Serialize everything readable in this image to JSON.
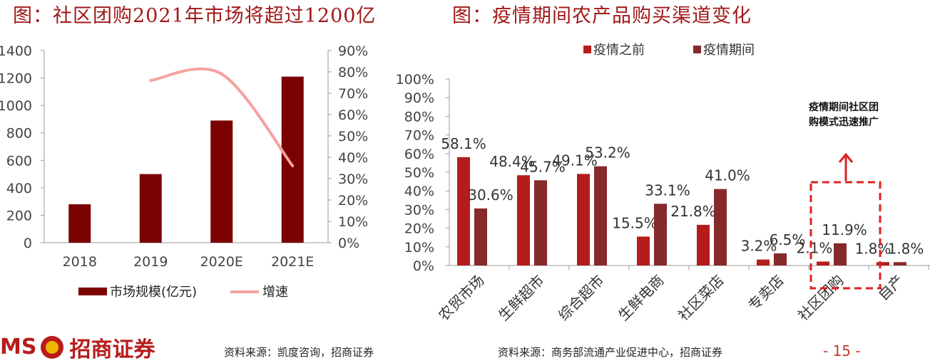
{
  "titles": {
    "left": "图：社区团购2021年市场将超过1200亿",
    "right": "图：疫情期间农产品购买渠道变化"
  },
  "sources": {
    "left": "资料来源：凯度咨询，招商证券",
    "right": "资料来源：商务部流通产业促进中心，招商证券"
  },
  "page_number": "- 15 -",
  "logo": {
    "left_text": "MS",
    "right_text": "招商证券"
  },
  "colors": {
    "bar_dark": "#7b0000",
    "growth_line": "#f4a3a0",
    "before": "#b51c1c",
    "during": "#86292b",
    "title": "#a01717",
    "callout": "#e02020"
  },
  "chart_data": [
    {
      "type": "bar",
      "categories": [
        "2018",
        "2019",
        "2020E",
        "2021E"
      ],
      "series": [
        {
          "name": "市场规模(亿元)",
          "values": [
            280,
            500,
            890,
            1210
          ],
          "axis": "left"
        },
        {
          "name": "增速",
          "type": "line",
          "values": [
            null,
            76,
            79,
            36
          ],
          "axis": "right"
        }
      ],
      "ylim": [
        0,
        1400
      ],
      "yticks": [
        "0",
        "200",
        "400",
        "600",
        "800",
        "1000",
        "1200",
        "1400"
      ],
      "y2lim": [
        0,
        90
      ],
      "y2ticks": [
        "0%",
        "10%",
        "20%",
        "30%",
        "40%",
        "50%",
        "60%",
        "70%",
        "80%",
        "90%"
      ],
      "legend": "bottom"
    },
    {
      "type": "bar",
      "categories": [
        "农贸市场",
        "生鲜超市",
        "综合超市",
        "生鲜电商",
        "社区菜店",
        "专卖店",
        "社区团购",
        "自产"
      ],
      "series": [
        {
          "name": "疫情之前",
          "values": [
            58.1,
            48.4,
            49.1,
            15.5,
            21.8,
            3.2,
            2.1,
            1.8
          ],
          "labels": [
            "58.1%",
            "48.4%",
            "49.1%",
            "15.5%",
            "21.8%",
            "3.2%",
            "2.1%",
            "1.8%"
          ]
        },
        {
          "name": "疫情期间",
          "values": [
            30.6,
            45.7,
            53.2,
            33.1,
            41.0,
            6.5,
            11.9,
            1.8
          ],
          "labels": [
            "30.6%",
            "45.7%",
            "53.2%",
            "33.1%",
            "41.0%",
            "6.5%",
            "11.9%",
            "1.8%"
          ]
        }
      ],
      "ylim": [
        0,
        100
      ],
      "yticks": [
        "0%",
        "10%",
        "20%",
        "30%",
        "40%",
        "50%",
        "60%",
        "70%",
        "80%",
        "90%",
        "100%"
      ],
      "legend": "top",
      "annotation": "疫情期间社区团购模式迅速推广"
    }
  ]
}
